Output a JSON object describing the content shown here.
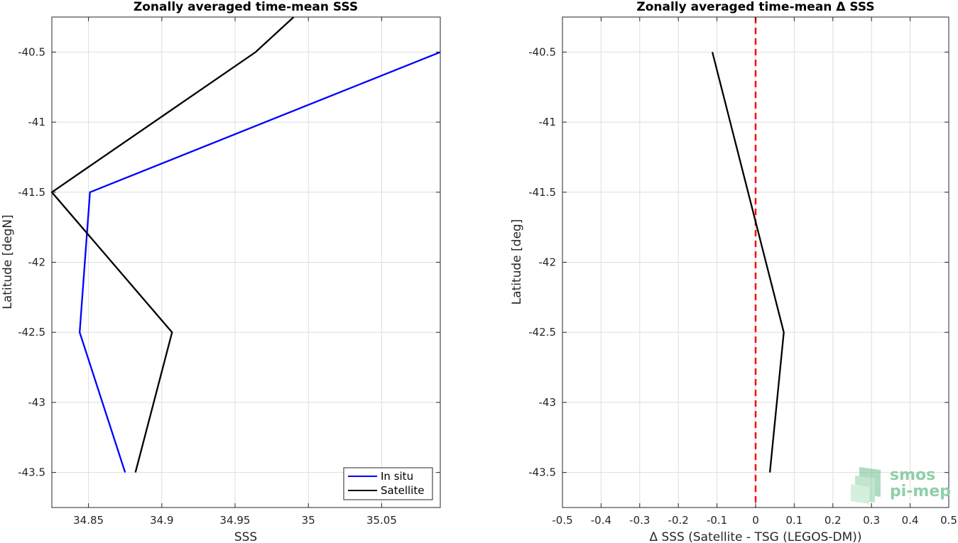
{
  "chart_data": [
    {
      "type": "line",
      "title": "Zonally averaged time-mean SSS",
      "xlabel": "SSS",
      "ylabel": "Latitude [degN]",
      "xlim": [
        34.825,
        35.09
      ],
      "ylim": [
        -43.75,
        -40.25
      ],
      "xticks": [
        34.85,
        34.9,
        34.95,
        35,
        35.05
      ],
      "xtick_labels": [
        "34.85",
        "34.9",
        "34.95",
        "35",
        "35.05"
      ],
      "yticks": [
        -40.5,
        -41,
        -41.5,
        -42,
        -42.5,
        -43,
        -43.5
      ],
      "ytick_labels": [
        "-40.5",
        "-41",
        "-41.5",
        "-42",
        "-42.5",
        "-43",
        "-43.5"
      ],
      "grid": true,
      "legend_position": "bottom-right",
      "series": [
        {
          "name": "In situ",
          "color": "#0000ff",
          "x": [
            35.09,
            34.851,
            34.844,
            34.875
          ],
          "y": [
            -40.5,
            -41.5,
            -42.5,
            -43.5
          ]
        },
        {
          "name": "Satellite",
          "color": "#000000",
          "x": [
            34.99,
            34.964,
            34.825,
            34.907,
            34.882
          ],
          "y": [
            -40.25,
            -40.5,
            -41.5,
            -42.5,
            -43.5
          ]
        }
      ]
    },
    {
      "type": "line",
      "title": "Zonally averaged time-mean Δ SSS",
      "xlabel": "Δ SSS (Satellite - TSG (LEGOS-DM))",
      "ylabel": "Latitude [deg]",
      "xlim": [
        -0.5,
        0.5
      ],
      "ylim": [
        -43.75,
        -40.25
      ],
      "xticks": [
        -0.5,
        -0.4,
        -0.3,
        -0.2,
        -0.1,
        0,
        0.1,
        0.2,
        0.3,
        0.4,
        0.5
      ],
      "xtick_labels": [
        "-0.5",
        "-0.4",
        "-0.3",
        "-0.2",
        "-0.1",
        "0",
        "0.1",
        "0.2",
        "0.3",
        "0.4",
        "0.5"
      ],
      "yticks": [
        -40.5,
        -41,
        -41.5,
        -42,
        -42.5,
        -43,
        -43.5
      ],
      "ytick_labels": [
        "-40.5",
        "-41",
        "-41.5",
        "-42",
        "-42.5",
        "-43",
        "-43.5"
      ],
      "grid": true,
      "reference_line": {
        "x": 0,
        "color": "#ff0000",
        "style": "dashed"
      },
      "series": [
        {
          "color": "#000000",
          "x": [
            -0.112,
            0.073,
            0.037
          ],
          "y": [
            -40.5,
            -42.5,
            -43.5
          ]
        }
      ]
    }
  ],
  "logo": {
    "line1": "smos",
    "line2": "pi-mep",
    "color": "#8fcfa8"
  }
}
